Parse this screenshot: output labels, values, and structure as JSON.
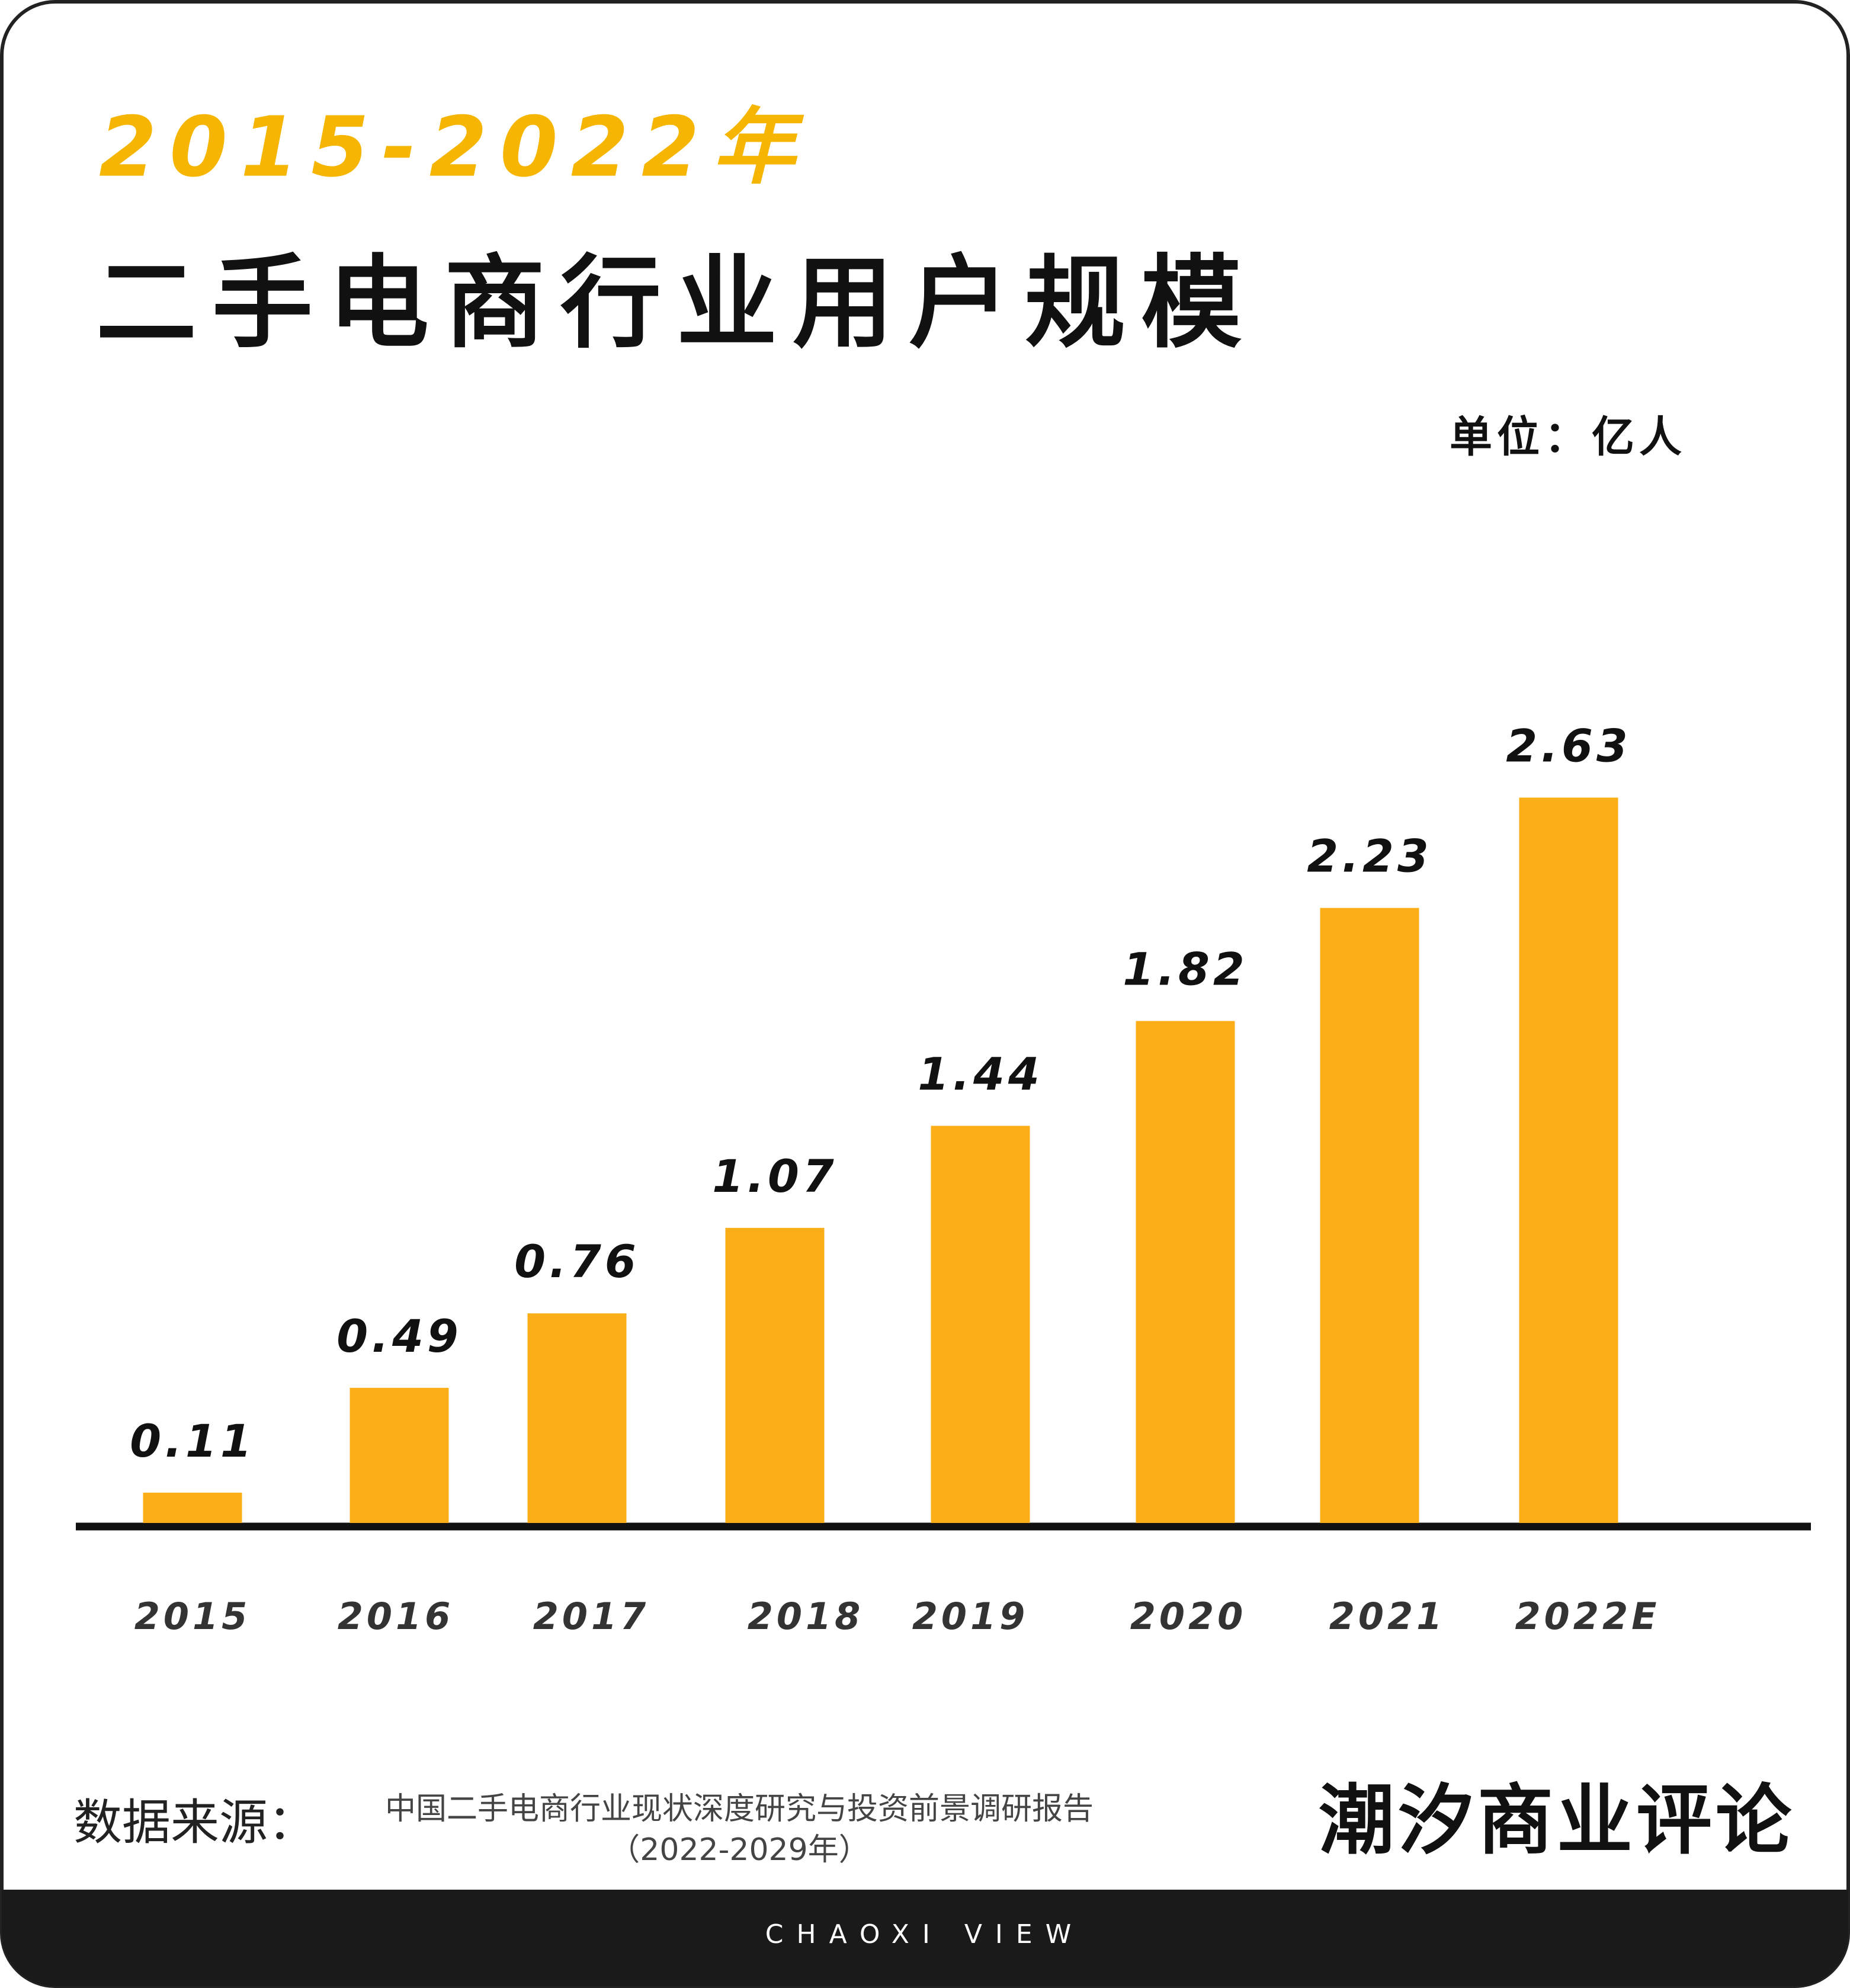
{
  "chart_data": {
    "type": "bar",
    "title": "2015-2022年",
    "subtitle": "二手电商行业用户规模",
    "unit": "单位：亿人",
    "categories": [
      "2015",
      "2016",
      "2017",
      "2018",
      "2019",
      "2020",
      "2021",
      "2022E"
    ],
    "values": [
      0.11,
      0.49,
      0.76,
      1.07,
      1.44,
      1.82,
      2.23,
      2.63
    ],
    "color": "#fbae17"
  },
  "footer": {
    "source_label": "数据来源：",
    "source_lines": [
      "中国二手电商行业现状深度研究与投资前景调研报告",
      "（2022-2029年）"
    ],
    "brand": "潮汐商业评论",
    "brand_en": "CHAOXI VIEW"
  }
}
